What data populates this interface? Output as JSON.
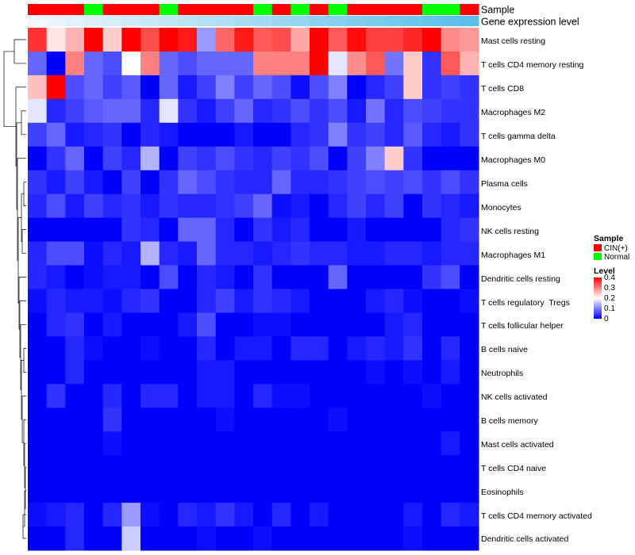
{
  "chart_data": {
    "type": "heatmap",
    "annotation_tracks": {
      "sample_label": "Sample",
      "expression_label": "Gene expression level"
    },
    "columns": [
      {
        "sample": "CIN(+)"
      },
      {
        "sample": "CIN(+)"
      },
      {
        "sample": "CIN(+)"
      },
      {
        "sample": "Normal"
      },
      {
        "sample": "CIN(+)"
      },
      {
        "sample": "CIN(+)"
      },
      {
        "sample": "CIN(+)"
      },
      {
        "sample": "Normal"
      },
      {
        "sample": "CIN(+)"
      },
      {
        "sample": "CIN(+)"
      },
      {
        "sample": "CIN(+)"
      },
      {
        "sample": "CIN(+)"
      },
      {
        "sample": "Normal"
      },
      {
        "sample": "CIN(+)"
      },
      {
        "sample": "Normal"
      },
      {
        "sample": "CIN(+)"
      },
      {
        "sample": "Normal"
      },
      {
        "sample": "CIN(+)"
      },
      {
        "sample": "CIN(+)"
      },
      {
        "sample": "CIN(+)"
      },
      {
        "sample": "CIN(+)"
      },
      {
        "sample": "Normal"
      },
      {
        "sample": "Normal"
      },
      {
        "sample": "CIN(+)"
      }
    ],
    "rows": [
      "Mast cells resting",
      "T cells CD4 memory resting",
      "T cells CD8",
      "Macrophages M2",
      "T cells gamma delta",
      "Macrophages M0",
      "Plasma cells",
      "Monocytes",
      "NK cells resting",
      "Macrophages M1",
      "Dendritic cells resting",
      "T cells regulatory  Tregs",
      "T cells follicular helper",
      "B cells naive",
      "Neutrophils",
      "NK cells activated",
      "B cells memory",
      "Mast cells activated",
      "T cells CD4 naive",
      "Eosinophils",
      "T cells CD4 memory activated",
      "Dendritic cells activated"
    ],
    "values": [
      [
        0.36,
        0.22,
        0.26,
        0.4,
        0.24,
        0.4,
        0.34,
        0.4,
        0.38,
        0.12,
        0.32,
        0.38,
        0.33,
        0.34,
        0.27,
        0.4,
        0.33,
        0.39,
        0.35,
        0.35,
        0.37,
        0.4,
        0.29,
        0.28
      ],
      [
        0.08,
        0.0,
        0.3,
        0.08,
        0.06,
        0.2,
        0.3,
        0.08,
        0.06,
        0.08,
        0.08,
        0.08,
        0.3,
        0.3,
        0.3,
        0.4,
        0.18,
        0.29,
        0.33,
        0.09,
        0.24,
        0.04,
        0.33,
        0.26
      ],
      [
        0.25,
        0.4,
        0.06,
        0.08,
        0.05,
        0.07,
        0.0,
        0.08,
        0.02,
        0.05,
        0.1,
        0.05,
        0.08,
        0.06,
        0.01,
        0.06,
        0.1,
        0.0,
        0.03,
        0.05,
        0.24,
        0.04,
        0.05,
        0.04
      ],
      [
        0.18,
        0.03,
        0.05,
        0.07,
        0.08,
        0.08,
        0.03,
        0.18,
        0.04,
        0.02,
        0.05,
        0.08,
        0.03,
        0.04,
        0.06,
        0.04,
        0.06,
        0.02,
        0.09,
        0.03,
        0.06,
        0.05,
        0.04,
        0.04
      ],
      [
        0.05,
        0.08,
        0.02,
        0.03,
        0.04,
        0.0,
        0.03,
        0.02,
        0.0,
        0.0,
        0.0,
        0.02,
        0.0,
        0.0,
        0.03,
        0.04,
        0.1,
        0.04,
        0.05,
        0.03,
        0.07,
        0.03,
        0.02,
        0.04
      ],
      [
        0.0,
        0.04,
        0.08,
        0.0,
        0.05,
        0.03,
        0.14,
        0.0,
        0.05,
        0.04,
        0.06,
        0.04,
        0.03,
        0.05,
        0.04,
        0.06,
        0.0,
        0.05,
        0.1,
        0.24,
        0.04,
        0.0,
        0.0,
        0.0
      ],
      [
        0.04,
        0.02,
        0.05,
        0.02,
        0.0,
        0.05,
        0.0,
        0.04,
        0.08,
        0.06,
        0.04,
        0.03,
        0.03,
        0.08,
        0.03,
        0.03,
        0.04,
        0.05,
        0.06,
        0.05,
        0.06,
        0.04,
        0.06,
        0.04
      ],
      [
        0.03,
        0.06,
        0.02,
        0.05,
        0.03,
        0.04,
        0.02,
        0.04,
        0.03,
        0.03,
        0.04,
        0.05,
        0.08,
        0.01,
        0.02,
        0.0,
        0.03,
        0.05,
        0.03,
        0.05,
        0.0,
        0.04,
        0.03,
        0.02
      ],
      [
        0.0,
        0.0,
        0.0,
        0.0,
        0.0,
        0.04,
        0.03,
        0.0,
        0.08,
        0.08,
        0.03,
        0.0,
        0.04,
        0.02,
        0.03,
        0.0,
        0.0,
        0.02,
        0.0,
        0.0,
        0.0,
        0.0,
        0.03,
        0.04
      ],
      [
        0.03,
        0.06,
        0.06,
        0.01,
        0.03,
        0.02,
        0.14,
        0.03,
        0.02,
        0.08,
        0.03,
        0.03,
        0.02,
        0.03,
        0.04,
        0.03,
        0.03,
        0.02,
        0.02,
        0.03,
        0.03,
        0.02,
        0.03,
        0.03
      ],
      [
        0.03,
        0.02,
        0.0,
        0.01,
        0.02,
        0.02,
        0.0,
        0.06,
        0.0,
        0.03,
        0.02,
        0.0,
        0.04,
        0.0,
        0.0,
        0.0,
        0.08,
        0.0,
        0.0,
        0.0,
        0.0,
        0.04,
        0.06,
        0.0
      ],
      [
        0.01,
        0.03,
        0.02,
        0.02,
        0.01,
        0.03,
        0.04,
        0.0,
        0.0,
        0.03,
        0.05,
        0.02,
        0.04,
        0.03,
        0.02,
        0.0,
        0.0,
        0.0,
        0.02,
        0.03,
        0.01,
        0.0,
        0.0,
        0.01
      ],
      [
        0.0,
        0.03,
        0.04,
        0.0,
        0.02,
        0.0,
        0.0,
        0.0,
        0.02,
        0.06,
        0.0,
        0.0,
        0.01,
        0.01,
        0.0,
        0.0,
        0.0,
        0.0,
        0.0,
        0.02,
        0.03,
        0.0,
        0.0,
        0.0
      ],
      [
        0.0,
        0.0,
        0.03,
        0.01,
        0.0,
        0.0,
        0.01,
        0.0,
        0.0,
        0.03,
        0.0,
        0.02,
        0.02,
        0.0,
        0.03,
        0.03,
        0.0,
        0.02,
        0.03,
        0.02,
        0.04,
        0.0,
        0.03,
        0.0
      ],
      [
        0.0,
        0.0,
        0.03,
        0.0,
        0.0,
        0.0,
        0.0,
        0.0,
        0.0,
        0.02,
        0.02,
        0.0,
        0.0,
        0.0,
        0.0,
        0.0,
        0.0,
        0.0,
        0.01,
        0.0,
        0.01,
        0.0,
        0.02,
        0.0
      ],
      [
        0.0,
        0.04,
        0.0,
        0.0,
        0.03,
        0.0,
        0.03,
        0.03,
        0.0,
        0.02,
        0.02,
        0.0,
        0.03,
        0.01,
        0.01,
        0.0,
        0.0,
        0.0,
        0.0,
        0.0,
        0.0,
        0.01,
        0.0,
        0.0
      ],
      [
        0.0,
        0.0,
        0.0,
        0.0,
        0.04,
        0.0,
        0.0,
        0.0,
        0.0,
        0.0,
        0.01,
        0.0,
        0.0,
        0.0,
        0.0,
        0.0,
        0.01,
        0.0,
        0.0,
        0.0,
        0.0,
        0.0,
        0.0,
        0.0
      ],
      [
        0.0,
        0.0,
        0.0,
        0.0,
        0.01,
        0.0,
        0.0,
        0.0,
        0.0,
        0.0,
        0.0,
        0.0,
        0.0,
        0.0,
        0.0,
        0.0,
        0.0,
        0.0,
        0.0,
        0.0,
        0.0,
        0.0,
        0.02,
        0.0
      ],
      [
        0.0,
        0.0,
        0.0,
        0.0,
        0.0,
        0.0,
        0.0,
        0.0,
        0.0,
        0.0,
        0.0,
        0.0,
        0.0,
        0.0,
        0.0,
        0.0,
        0.0,
        0.0,
        0.0,
        0.0,
        0.0,
        0.0,
        0.0,
        0.0
      ],
      [
        0.0,
        0.0,
        0.0,
        0.0,
        0.0,
        0.0,
        0.0,
        0.0,
        0.0,
        0.0,
        0.0,
        0.0,
        0.0,
        0.0,
        0.0,
        0.0,
        0.0,
        0.0,
        0.0,
        0.0,
        0.0,
        0.0,
        0.0,
        0.0
      ],
      [
        0.01,
        0.02,
        0.03,
        0.0,
        0.03,
        0.12,
        0.01,
        0.0,
        0.03,
        0.02,
        0.04,
        0.02,
        0.0,
        0.03,
        0.0,
        0.02,
        0.0,
        0.0,
        0.0,
        0.0,
        0.02,
        0.0,
        0.03,
        0.02
      ],
      [
        0.0,
        0.0,
        0.03,
        0.0,
        0.0,
        0.16,
        0.0,
        0.0,
        0.0,
        0.01,
        0.0,
        0.0,
        0.01,
        0.0,
        0.0,
        0.0,
        0.0,
        0.0,
        0.0,
        0.0,
        0.01,
        0.0,
        0.0,
        0.0
      ]
    ],
    "legend": {
      "sample_title": "Sample",
      "sample_items": [
        {
          "label": "CIN(+)",
          "color": "#ff0000"
        },
        {
          "label": "Normal",
          "color": "#00ff00"
        }
      ],
      "level_title": "Level",
      "level_ticks": [
        "0.4",
        "0.3",
        "0.2",
        "0.1",
        "0"
      ],
      "level_range": [
        0,
        0.4
      ]
    },
    "colors": {
      "low": "#0000ff",
      "mid": "#ffffff",
      "high": "#ff0000"
    }
  }
}
